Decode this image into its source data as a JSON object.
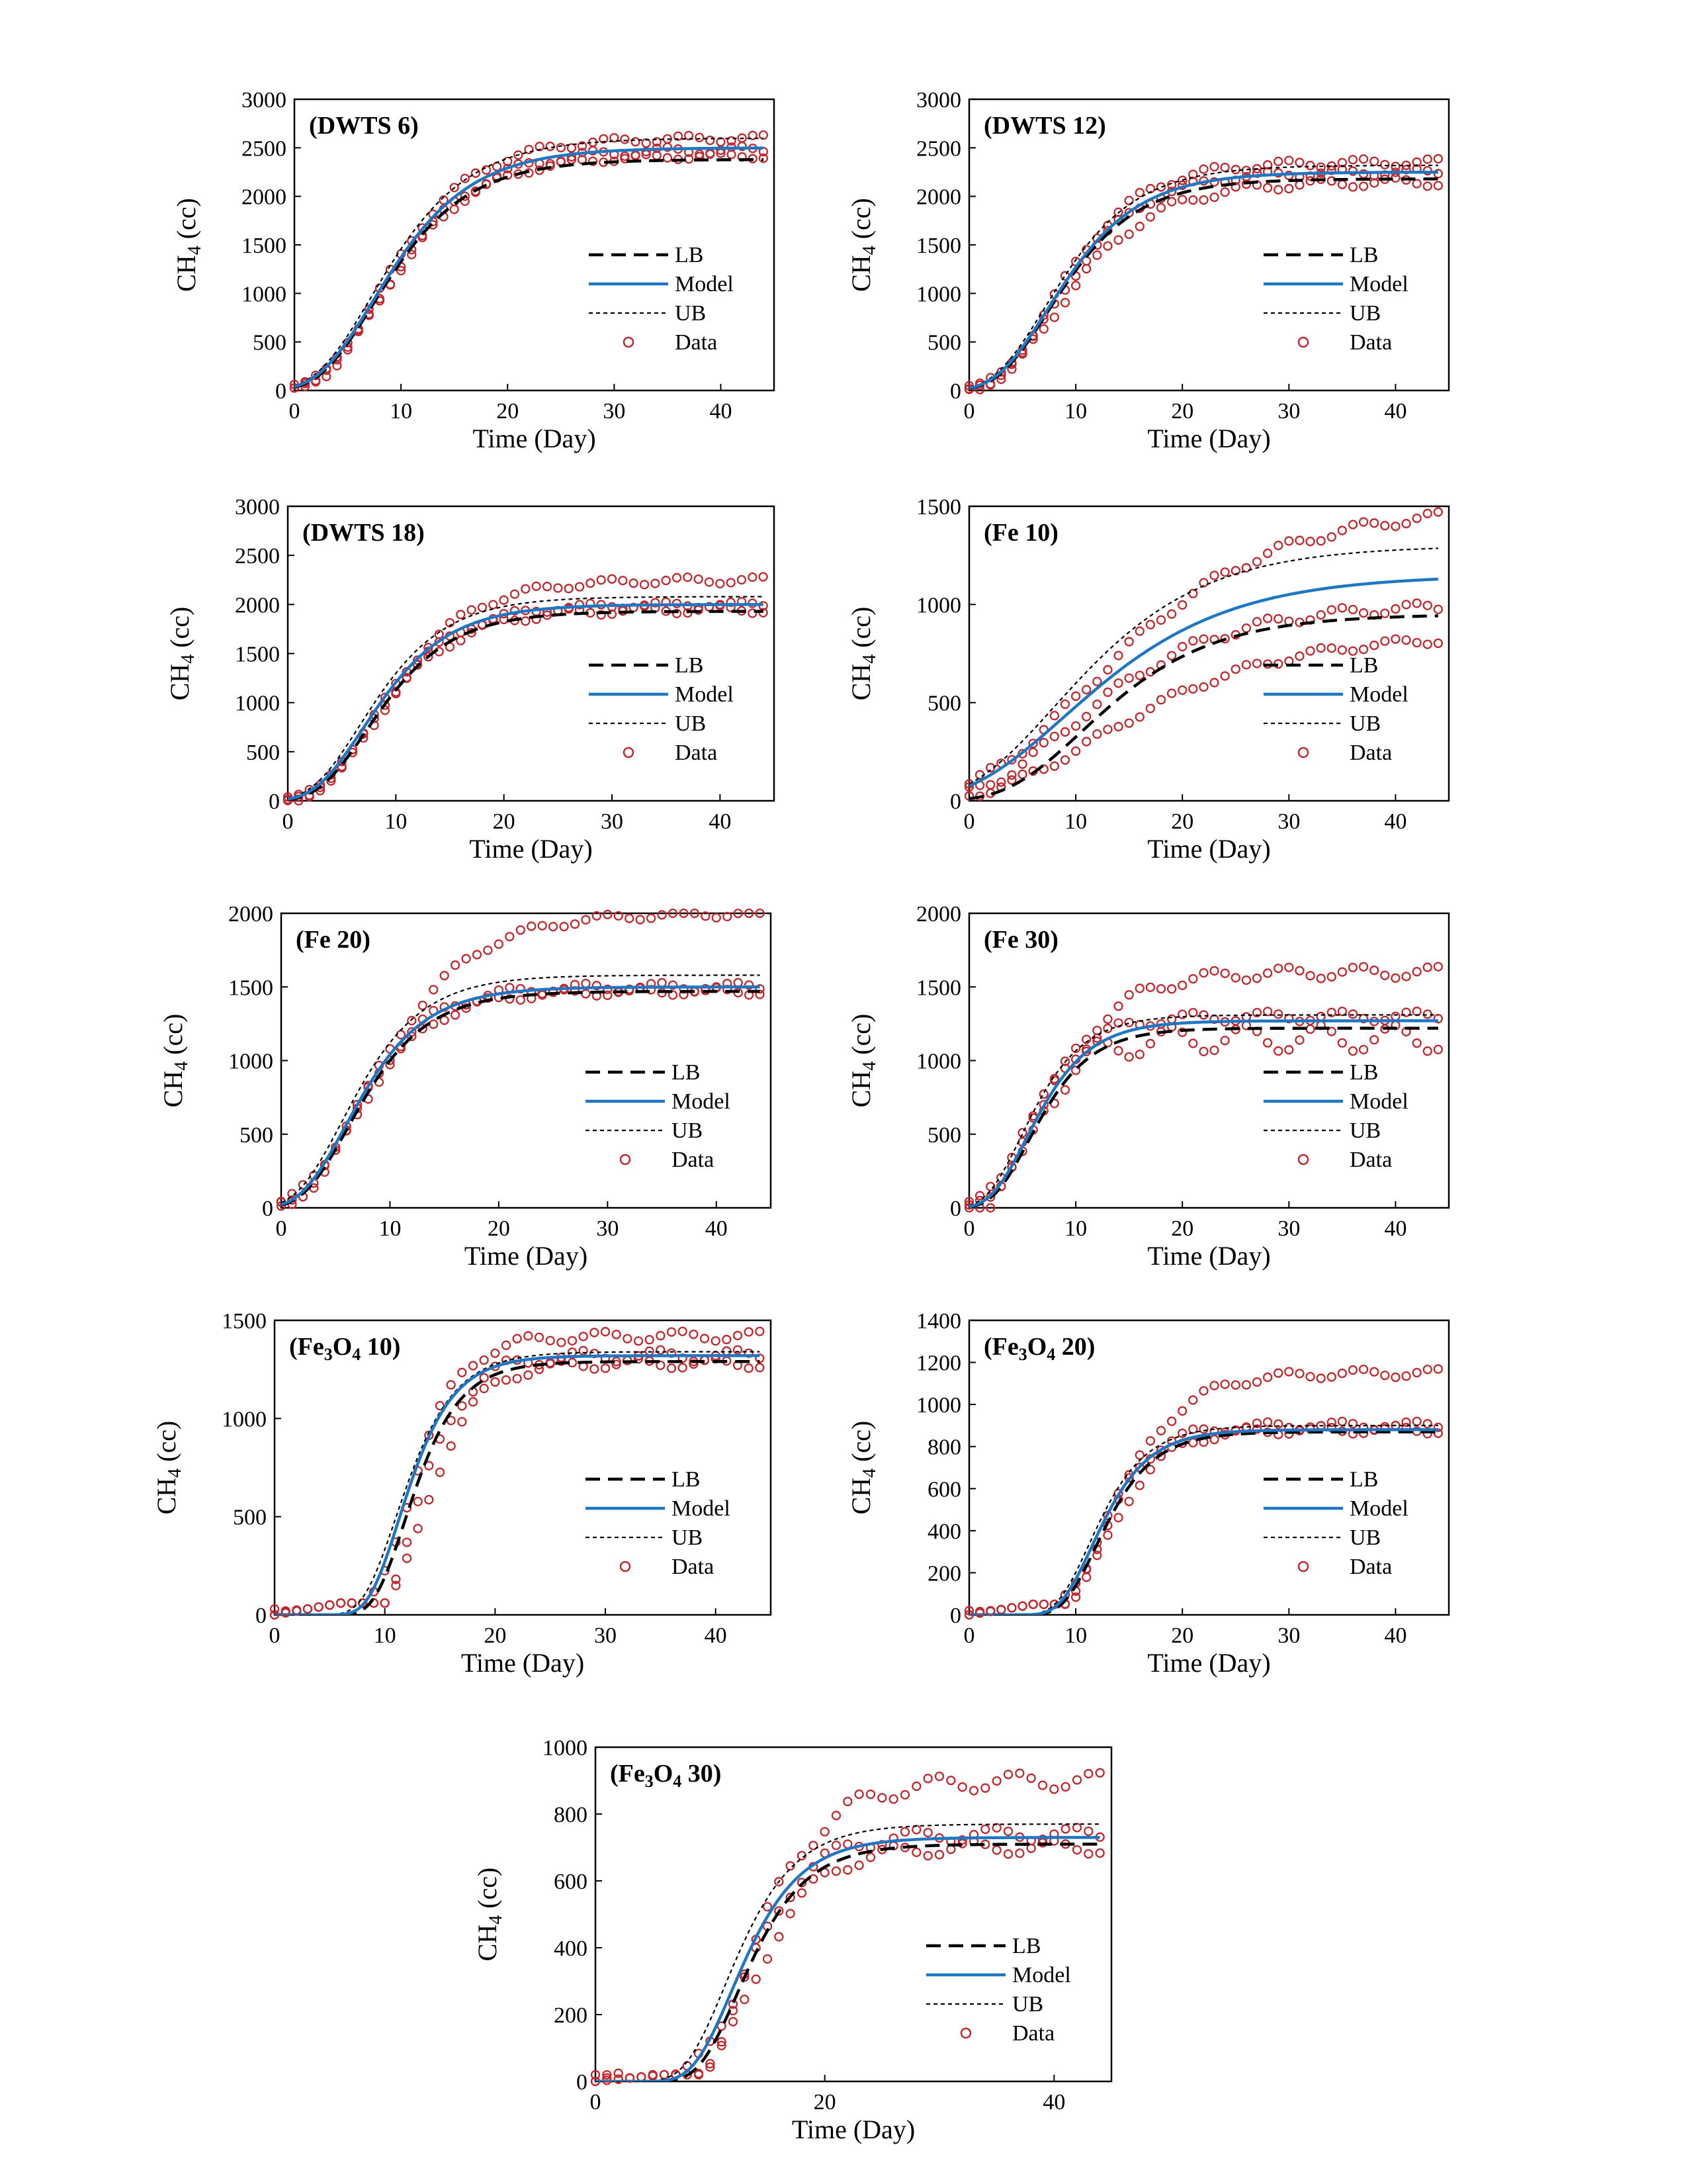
{
  "legend_labels": [
    "LB",
    "Model",
    "UB",
    "Data"
  ],
  "colors": {
    "model": "#1f77c4",
    "bound": "#000000",
    "data": "#c0282d"
  },
  "chart_data": [
    {
      "type": "line",
      "title": "(DWTS 6)",
      "title_html": "(DWTS 6)",
      "xlabel": "Time (Day)",
      "ylabel": "CH4 (cc)",
      "xlim": [
        0,
        45
      ],
      "ylim": [
        0,
        3000
      ],
      "xticks": [
        0,
        10,
        20,
        30,
        40
      ],
      "yticks": [
        0,
        500,
        1000,
        1500,
        2000,
        2500,
        3000
      ],
      "grid": false,
      "legend": "right",
      "model": {
        "A": 2500,
        "mu": 178,
        "lambda": 2.2
      },
      "lb": {
        "A": 2380,
        "mu": 175,
        "lambda": 2.3
      },
      "ub": {
        "A": 2600,
        "mu": 185,
        "lambda": 2.0
      },
      "data_series": [
        {
          "A": 2600,
          "mu": 190,
          "lambda": 2.6,
          "wobble": 35
        },
        {
          "A": 2480,
          "mu": 178,
          "lambda": 2.8,
          "wobble": 40
        },
        {
          "A": 2420,
          "mu": 170,
          "lambda": 2.4,
          "wobble": 30
        }
      ]
    },
    {
      "type": "line",
      "title": "(DWTS 12)",
      "title_html": "(DWTS 12)",
      "xlabel": "Time (Day)",
      "ylabel": "CH4 (cc)",
      "xlim": [
        0,
        45
      ],
      "ylim": [
        0,
        3000
      ],
      "xticks": [
        0,
        10,
        20,
        30,
        40
      ],
      "yticks": [
        0,
        500,
        1000,
        1500,
        2000,
        2500,
        3000
      ],
      "grid": false,
      "legend": "right",
      "model": {
        "A": 2250,
        "mu": 172,
        "lambda": 2.5
      },
      "lb": {
        "A": 2180,
        "mu": 170,
        "lambda": 2.6
      },
      "ub": {
        "A": 2320,
        "mu": 178,
        "lambda": 2.3
      },
      "data_series": [
        {
          "A": 2350,
          "mu": 185,
          "lambda": 2.8,
          "wobble": 40
        },
        {
          "A": 2250,
          "mu": 175,
          "lambda": 3.0,
          "wobble": 35
        },
        {
          "A": 2150,
          "mu": 150,
          "lambda": 2.7,
          "wobble": 45
        }
      ]
    },
    {
      "type": "line",
      "title": "(DWTS 18)",
      "title_html": "(DWTS 18)",
      "xlabel": "Time (Day)",
      "ylabel": "CH4 (cc)",
      "xlim": [
        0,
        45
      ],
      "ylim": [
        0,
        3000
      ],
      "xticks": [
        0,
        10,
        20,
        30,
        40
      ],
      "yticks": [
        0,
        500,
        1000,
        1500,
        2000,
        2500,
        3000
      ],
      "grid": false,
      "legend": "right",
      "model": {
        "A": 2000,
        "mu": 165,
        "lambda": 2.5
      },
      "lb": {
        "A": 1930,
        "mu": 160,
        "lambda": 2.8
      },
      "ub": {
        "A": 2080,
        "mu": 172,
        "lambda": 2.2
      },
      "data_series": [
        {
          "A": 2250,
          "mu": 170,
          "lambda": 3.0,
          "wobble": 35
        },
        {
          "A": 2000,
          "mu": 165,
          "lambda": 3.0,
          "wobble": 30
        },
        {
          "A": 1950,
          "mu": 155,
          "lambda": 2.8,
          "wobble": 40
        }
      ]
    },
    {
      "type": "line",
      "title": "(Fe 10)",
      "title_html": "(Fe 10)",
      "xlabel": "Time (Day)",
      "ylabel": "CH4 (cc)",
      "xlim": [
        0,
        45
      ],
      "ylim": [
        0,
        1500
      ],
      "xticks": [
        0,
        10,
        20,
        30,
        40
      ],
      "yticks": [
        0,
        500,
        1000,
        1500
      ],
      "grid": false,
      "legend": "right",
      "model": {
        "A": 1150,
        "mu": 48,
        "lambda": 0.0
      },
      "lb": {
        "A": 950,
        "mu": 50,
        "lambda": 3.5
      },
      "ub": {
        "A": 1300,
        "mu": 60,
        "lambda": 0.0
      },
      "data_series": [
        {
          "A": 1500,
          "mu": 55,
          "lambda": 0.5,
          "wobble": 25
        },
        {
          "A": 1000,
          "mu": 45,
          "lambda": 1.0,
          "wobble": 25
        },
        {
          "A": 850,
          "mu": 32,
          "lambda": 2.0,
          "wobble": 20
        }
      ]
    },
    {
      "type": "line",
      "title": "(Fe 20)",
      "title_html": "(Fe 20)",
      "xlabel": "Time (Day)",
      "ylabel": "CH4 (cc)",
      "xlim": [
        0,
        45
      ],
      "ylim": [
        0,
        2000
      ],
      "xticks": [
        0,
        10,
        20,
        30,
        40
      ],
      "yticks": [
        0,
        500,
        1000,
        1500,
        2000
      ],
      "grid": false,
      "legend": "right",
      "model": {
        "A": 1500,
        "mu": 135,
        "lambda": 1.8
      },
      "lb": {
        "A": 1470,
        "mu": 132,
        "lambda": 2.0
      },
      "ub": {
        "A": 1580,
        "mu": 140,
        "lambda": 1.4
      },
      "data_series": [
        {
          "A": 2000,
          "mu": 135,
          "lambda": 2.0,
          "wobble": 25
        },
        {
          "A": 1500,
          "mu": 140,
          "lambda": 2.2,
          "wobble": 30
        },
        {
          "A": 1470,
          "mu": 128,
          "lambda": 2.0,
          "wobble": 25
        }
      ]
    },
    {
      "type": "line",
      "title": "(Fe 30)",
      "title_html": "(Fe 30)",
      "xlabel": "Time (Day)",
      "ylabel": "CH4 (cc)",
      "xlim": [
        0,
        45
      ],
      "ylim": [
        0,
        2000
      ],
      "xticks": [
        0,
        10,
        20,
        30,
        40
      ],
      "yticks": [
        0,
        500,
        1000,
        1500,
        2000
      ],
      "grid": false,
      "legend": "right",
      "model": {
        "A": 1270,
        "mu": 140,
        "lambda": 2.0
      },
      "lb": {
        "A": 1220,
        "mu": 135,
        "lambda": 2.2
      },
      "ub": {
        "A": 1310,
        "mu": 148,
        "lambda": 1.6
      },
      "data_series": [
        {
          "A": 1600,
          "mu": 140,
          "lambda": 2.0,
          "wobble": 40
        },
        {
          "A": 1300,
          "mu": 150,
          "lambda": 2.0,
          "wobble": 35
        },
        {
          "A": 1150,
          "mu": 140,
          "lambda": 2.0,
          "wobble": 90
        }
      ]
    },
    {
      "type": "line",
      "title": "(Fe3O4 10)",
      "title_html": "(Fe<tspan dy='8' font-size='26'>3</tspan><tspan dy='-8'>O</tspan><tspan dy='8' font-size='26'>4</tspan><tspan dy='-8'> 10)</tspan>",
      "xlabel": "Time (Day)",
      "ylabel": "CH4 (cc)",
      "xlim": [
        0,
        45
      ],
      "ylim": [
        0,
        1500
      ],
      "xticks": [
        0,
        10,
        20,
        30,
        40
      ],
      "yticks": [
        0,
        500,
        1000,
        1500
      ],
      "grid": false,
      "legend": "right",
      "model": {
        "A": 1320,
        "mu": 175,
        "lambda": 8.5
      },
      "lb": {
        "A": 1290,
        "mu": 170,
        "lambda": 9.0
      },
      "ub": {
        "A": 1340,
        "mu": 165,
        "lambda": 8.0
      },
      "data_series": [
        {
          "A": 1420,
          "mu": 190,
          "lambda": 9.0,
          "wobble": 25,
          "base": 60
        },
        {
          "A": 1320,
          "mu": 185,
          "lambda": 10.0,
          "wobble": 30,
          "base": 60
        },
        {
          "A": 1280,
          "mu": 170,
          "lambda": 10.5,
          "wobble": 25,
          "base": 60
        }
      ]
    },
    {
      "type": "line",
      "title": "(Fe3O4 20)",
      "title_html": "(Fe<tspan dy='8' font-size='26'>3</tspan><tspan dy='-8'>O</tspan><tspan dy='8' font-size='26'>4</tspan><tspan dy='-8'> 20)</tspan>",
      "xlabel": "Time (Day)",
      "ylabel": "CH4 (cc)",
      "xlim": [
        0,
        45
      ],
      "ylim": [
        0,
        1400
      ],
      "xticks": [
        0,
        10,
        20,
        30,
        40
      ],
      "yticks": [
        0,
        200,
        400,
        600,
        800,
        1000,
        1200,
        1400
      ],
      "grid": false,
      "legend": "right",
      "model": {
        "A": 880,
        "mu": 108,
        "lambda": 8.5
      },
      "lb": {
        "A": 870,
        "mu": 105,
        "lambda": 8.8
      },
      "ub": {
        "A": 900,
        "mu": 110,
        "lambda": 8.2
      },
      "data_series": [
        {
          "A": 1150,
          "mu": 110,
          "lambda": 9.0,
          "wobble": 20,
          "base": 50
        },
        {
          "A": 900,
          "mu": 115,
          "lambda": 9.0,
          "wobble": 20,
          "base": 50
        },
        {
          "A": 880,
          "mu": 105,
          "lambda": 9.5,
          "wobble": 20,
          "base": 50
        }
      ]
    },
    {
      "type": "line",
      "title": "(Fe3O4 30)",
      "title_html": "(Fe<tspan dy='8' font-size='26'>3</tspan><tspan dy='-8'>O</tspan><tspan dy='8' font-size='26'>4</tspan><tspan dy='-8'> 30)</tspan>",
      "xlabel": "Time (Day)",
      "ylabel": "CH4 (cc)",
      "xlim": [
        0,
        45
      ],
      "ylim": [
        0,
        1000
      ],
      "xticks": [
        0,
        20,
        40
      ],
      "yticks": [
        0,
        200,
        400,
        600,
        800,
        1000
      ],
      "grid": false,
      "legend": "right",
      "model": {
        "A": 730,
        "mu": 80,
        "lambda": 8.5
      },
      "lb": {
        "A": 710,
        "mu": 78,
        "lambda": 9.0
      },
      "ub": {
        "A": 770,
        "mu": 82,
        "lambda": 7.8
      },
      "data_series": [
        {
          "A": 900,
          "mu": 85,
          "lambda": 9.0,
          "wobble": 25,
          "base": 20
        },
        {
          "A": 740,
          "mu": 85,
          "lambda": 9.5,
          "wobble": 20,
          "base": 20
        },
        {
          "A": 700,
          "mu": 78,
          "lambda": 10.0,
          "wobble": 20,
          "base": 20
        }
      ]
    }
  ]
}
